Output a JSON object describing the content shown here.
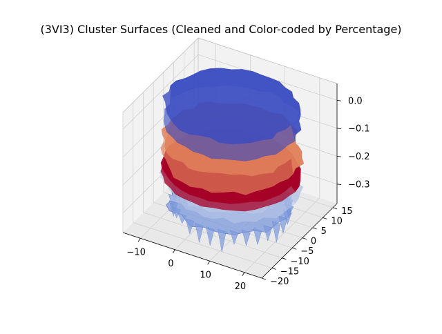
{
  "chart_data": {
    "type": "surface3d",
    "title": "(3VI3) Cluster Surfaces (Cleaned and Color-coded by Percentage)",
    "xlabel": "",
    "ylabel": "",
    "zlabel": "",
    "x_ticks": [
      -10,
      0,
      10,
      20
    ],
    "y_ticks": [
      -20,
      -15,
      -10,
      -5,
      0,
      5,
      10,
      15
    ],
    "z_ticks": [
      0.0,
      -0.1,
      -0.2,
      -0.3
    ],
    "z_tick_labels": [
      "0.0",
      "−0.1",
      "−0.2",
      "−0.3"
    ],
    "xlim": [
      -15,
      25
    ],
    "ylim": [
      -20,
      17
    ],
    "zlim": [
      -0.37,
      0.06
    ],
    "grid": true,
    "colormap": "coolwarm",
    "colors": {
      "top_layer": "#3b4cc0",
      "warm_layer": "#e0805a",
      "red_band": "#a50026",
      "light_layer": "#b9c7e6",
      "bottom_layer": "#7b98db",
      "pane": "#f2f2f2",
      "grid": "#d0d0d0"
    },
    "surfaces": [
      {
        "color_role": "top_layer",
        "z_level": 0.0
      },
      {
        "color_role": "warm_layer",
        "z_level": -0.12
      },
      {
        "color_role": "red_band",
        "z_level": -0.2
      },
      {
        "color_role": "light_layer",
        "z_level": -0.24
      },
      {
        "color_role": "bottom_layer",
        "z_level": -0.33
      }
    ]
  }
}
